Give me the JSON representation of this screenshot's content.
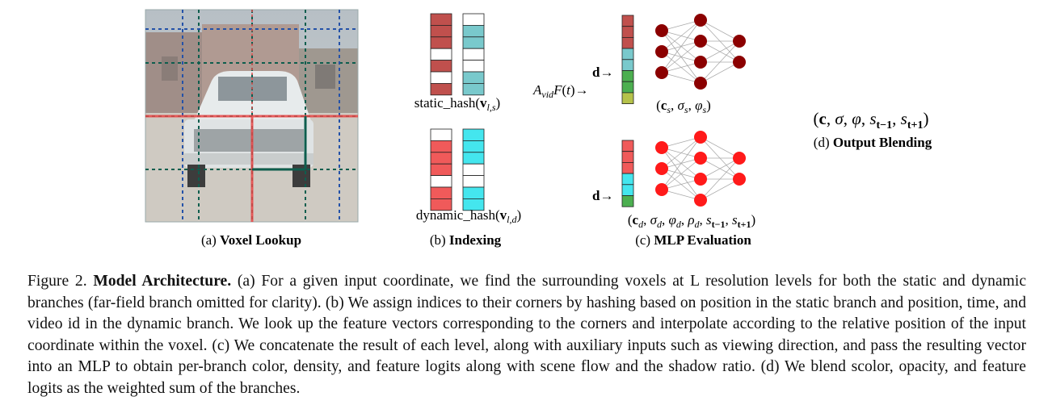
{
  "panels": {
    "a": {
      "label": "(a)",
      "title": "Voxel Lookup"
    },
    "b": {
      "label": "(b)",
      "title": "Indexing",
      "static_hash": "static_hash(v_{l,s})",
      "dynamic_hash": "dynamic_hash(v_{l,d})"
    },
    "c": {
      "label": "(c)",
      "title": "MLP Evaluation",
      "input_d": "d→",
      "input_time": "A_{vid}F(t)→",
      "static_out": "(c_s, σ_s, φ_s)",
      "dynamic_out": "(c_d, σ_d, φ_d, ρ_d, s_{t−1}, s_{t+1})"
    },
    "d": {
      "label": "(d)",
      "title": "Output Blending",
      "output": "(c, σ, φ, s_{t−1}, s_{t+1})"
    }
  },
  "caption": {
    "figure_label": "Figure 2.",
    "bold_title": "Model Architecture.",
    "text": "(a) For a given input coordinate, we find the surrounding voxels at L resolution levels for both the static and dynamic branches (far-field branch omitted for clarity). (b) We assign indices to their corners by hashing based on position in the static branch and position, time, and video id in the dynamic branch. We look up the feature vectors corresponding to the corners and interpolate according to the relative position of the input coordinate within the voxel. (c) We concatenate the result of each level, along with auxiliary inputs such as viewing direction, and pass the resulting vector into an MLP to obtain per-branch color, density, and feature logits along with scene flow and the shadow ratio. (d) We blend scolor, opacity, and feature logits as the weighted sum of the branches."
  },
  "colors": {
    "static_red": "#c0504d",
    "static_teal": "#79c9cc",
    "dynamic_red": "#f05a5a",
    "dynamic_cyan": "#44e6ee",
    "green": "#4caf50",
    "olive": "#b5c24a",
    "static_node": "#8b0000",
    "dynamic_node": "#ff1a1a",
    "grid_teal": "#0e5e4e"
  }
}
